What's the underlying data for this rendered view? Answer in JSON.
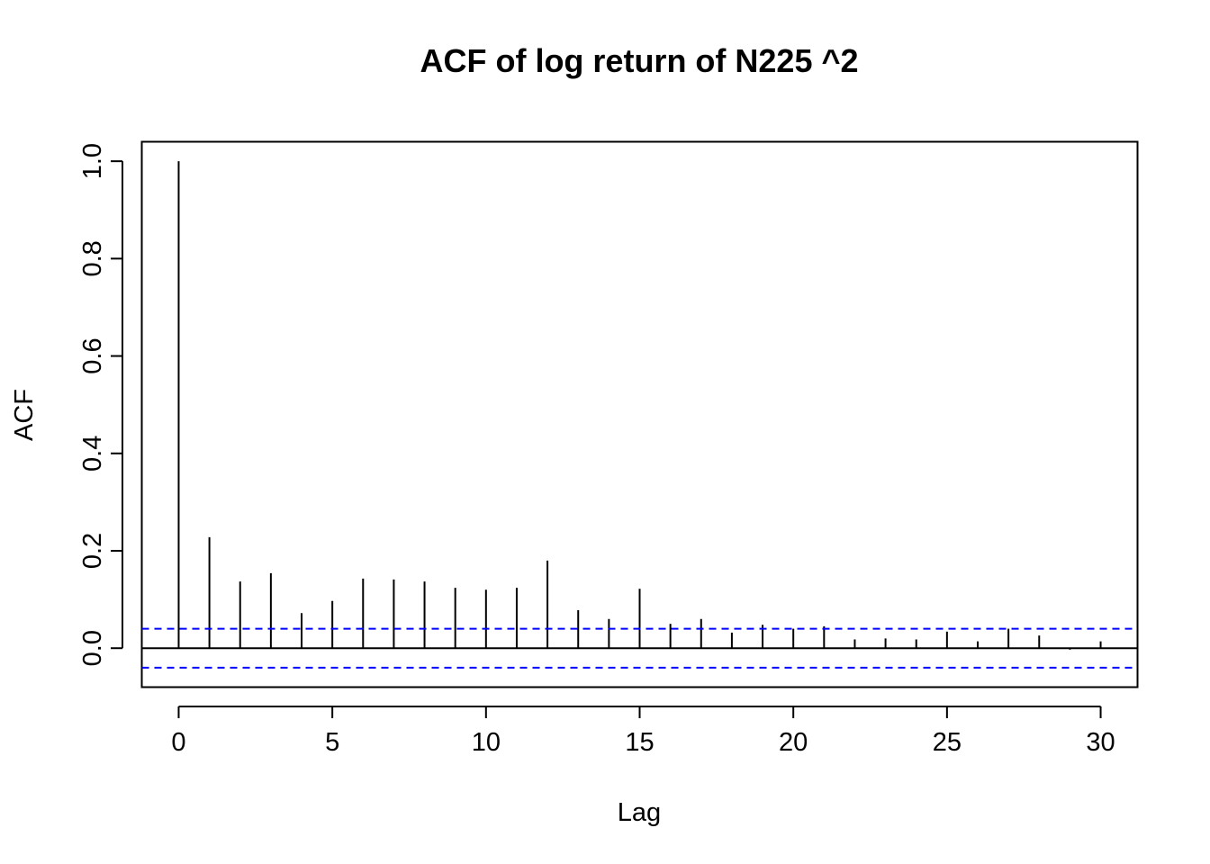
{
  "chart_data": {
    "type": "bar",
    "title": "ACF of log return of N225 ^2",
    "xlabel": "Lag",
    "ylabel": "ACF",
    "xlim": [
      -1.2,
      31.2
    ],
    "ylim": [
      -0.08,
      1.04
    ],
    "x_ticks": [
      0,
      5,
      10,
      15,
      20,
      25,
      30
    ],
    "x_tick_labels": [
      "0",
      "5",
      "10",
      "15",
      "20",
      "25",
      "30"
    ],
    "y_ticks": [
      0.0,
      0.2,
      0.4,
      0.6,
      0.8,
      1.0
    ],
    "y_tick_labels": [
      "0.0",
      "0.2",
      "0.4",
      "0.6",
      "0.8",
      "1.0"
    ],
    "lags": [
      0,
      1,
      2,
      3,
      4,
      5,
      6,
      7,
      8,
      9,
      10,
      11,
      12,
      13,
      14,
      15,
      16,
      17,
      18,
      19,
      20,
      21,
      22,
      23,
      24,
      25,
      26,
      27,
      28,
      29,
      30
    ],
    "acf": [
      1.0,
      0.228,
      0.137,
      0.154,
      0.072,
      0.097,
      0.143,
      0.141,
      0.137,
      0.124,
      0.12,
      0.124,
      0.18,
      0.078,
      0.06,
      0.122,
      0.05,
      0.06,
      0.032,
      0.048,
      0.04,
      0.045,
      0.018,
      0.02,
      0.018,
      0.034,
      0.014,
      0.04,
      0.026,
      -0.003,
      0.014
    ],
    "confidence_bound": 0.04,
    "confidence_color": "#0000ff",
    "grid": false,
    "legend": false
  }
}
